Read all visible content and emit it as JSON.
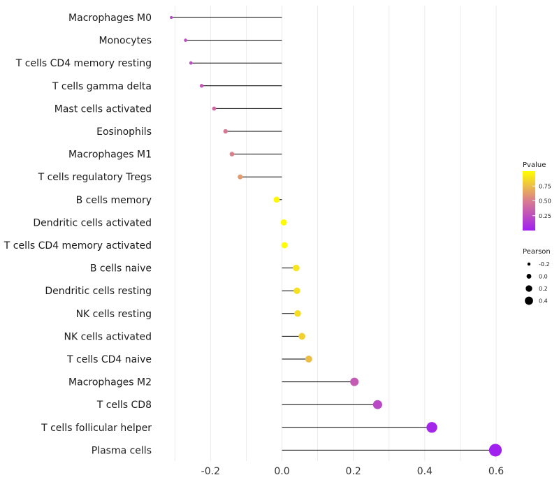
{
  "chart_data": {
    "type": "lollipop",
    "xlabel": "",
    "ylabel": "",
    "xlim": [
      -0.32,
      0.6
    ],
    "xticks": [
      -0.2,
      0.0,
      0.2,
      0.4,
      0.6
    ],
    "xtick_labels": [
      "-0.2",
      "0.0",
      "0.2",
      "0.4",
      "0.6"
    ],
    "grid": true,
    "legend_position": "right",
    "categories": [
      "Macrophages M0",
      "Monocytes",
      "T cells CD4 memory resting",
      "T cells gamma delta",
      "Mast cells activated",
      "Eosinophils",
      "Macrophages M1",
      "T cells regulatory  Tregs",
      "B cells memory",
      "Dendritic cells activated",
      "T cells CD4 memory activated",
      "B cells naive",
      "Dendritic cells resting",
      "NK cells resting",
      "NK cells activated",
      "T cells CD4 naive",
      "Macrophages M2",
      "T cells CD8",
      "T cells follicular helper",
      "Plasma cells"
    ],
    "pearson": [
      -0.31,
      -0.27,
      -0.255,
      -0.225,
      -0.19,
      -0.158,
      -0.14,
      -0.117,
      -0.015,
      0.005,
      0.007,
      0.04,
      0.042,
      0.044,
      0.056,
      0.075,
      0.203,
      0.268,
      0.42,
      0.598
    ],
    "pvalue": [
      0.2,
      0.25,
      0.25,
      0.3,
      0.4,
      0.48,
      0.52,
      0.62,
      0.97,
      0.99,
      0.99,
      0.9,
      0.88,
      0.87,
      0.82,
      0.75,
      0.32,
      0.22,
      0.03,
      0.0
    ],
    "legend_pvalue": {
      "title": "Pvalue",
      "ticks": [
        0.75,
        0.5,
        0.25
      ],
      "tick_labels": [
        "0.75",
        "0.50",
        "0.25"
      ],
      "range": [
        0,
        1
      ],
      "color_low": "#a020f0",
      "color_mid": "#d97c8f",
      "color_high": "#ffff00"
    },
    "legend_pearson": {
      "title": "Pearson",
      "values": [
        -0.2,
        0.0,
        0.2,
        0.4
      ],
      "labels": [
        "-0.2",
        "0.0",
        "0.2",
        "0.4"
      ]
    },
    "colors": {
      "stem": "#000000",
      "grid": "#ebebeb"
    }
  }
}
